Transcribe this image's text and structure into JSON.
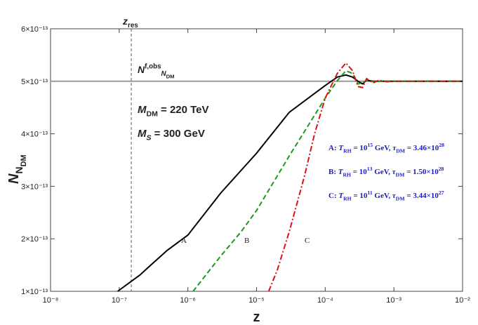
{
  "chart_data": {
    "type": "line",
    "xscale": "log",
    "xlim": [
      1e-08,
      0.01
    ],
    "ylim": [
      1e-13,
      6e-13
    ],
    "xticks": [
      {
        "value": 1e-08,
        "label": "10⁻⁸"
      },
      {
        "value": 1e-07,
        "label": "10⁻⁷"
      },
      {
        "value": 1e-06,
        "label": "10⁻⁶"
      },
      {
        "value": 1e-05,
        "label": "10⁻⁵"
      },
      {
        "value": 0.0001,
        "label": "10⁻⁴"
      },
      {
        "value": 0.001,
        "label": "10⁻³"
      },
      {
        "value": 0.01,
        "label": "10⁻²"
      }
    ],
    "yticks": [
      {
        "value": 1e-13,
        "label": "1×10⁻¹³"
      },
      {
        "value": 2e-13,
        "label": "2×10⁻¹³"
      },
      {
        "value": 3e-13,
        "label": "3×10⁻¹³"
      },
      {
        "value": 4e-13,
        "label": "4×10⁻¹³"
      },
      {
        "value": 5e-13,
        "label": "5×10⁻¹³"
      },
      {
        "value": 6e-13,
        "label": "6×10⁻¹³"
      }
    ],
    "x_label": [
      [
        "z",
        ""
      ]
    ],
    "y_label": [
      [
        "N",
        "i"
      ],
      [
        "N",
        "sub"
      ],
      [
        "DM",
        "subsub"
      ]
    ],
    "series": [
      {
        "name": "A",
        "color": "#000000",
        "dash": "solid",
        "x": [
          9.5e-08,
          2e-07,
          3e-07,
          5e-07,
          1e-06,
          3e-06,
          1e-05,
          3e-05,
          0.0001,
          0.00015,
          0.0002,
          0.00025,
          0.0003,
          0.00035,
          0.0004,
          0.0005,
          0.001,
          0.01
        ],
        "values": [
          1e-13,
          1.31e-13,
          1.52e-13,
          1.78e-13,
          2.07e-13,
          2.87e-13,
          3.63e-13,
          4.41e-13,
          4.92e-13,
          5.08e-13,
          5.12e-13,
          5.08e-13,
          5e-13,
          4.95e-13,
          5.02e-13,
          5e-13,
          5e-13,
          5e-13
        ]
      },
      {
        "name": "B",
        "color": "#1a9a1a",
        "dash": "dashed",
        "x": [
          1.19e-06,
          3e-06,
          6e-06,
          1e-05,
          3e-05,
          0.0001,
          0.00015,
          0.0002,
          0.00025,
          0.0003,
          0.00035,
          0.0004,
          0.0005,
          0.0006,
          0.001,
          0.01
        ],
        "values": [
          1e-13,
          1.67e-13,
          2.14e-13,
          2.54e-13,
          3.58e-13,
          4.68e-13,
          5.01e-13,
          5.2e-13,
          5.15e-13,
          4.95e-13,
          4.97e-13,
          5.02e-13,
          4.99e-13,
          5e-13,
          5e-13,
          5e-13
        ]
      },
      {
        "name": "C",
        "color": "#e01010",
        "dash": "dashdot",
        "x": [
          1.5e-05,
          2e-05,
          3e-05,
          5e-05,
          7e-05,
          0.0001,
          0.00015,
          0.0002,
          0.00025,
          0.0003,
          0.00035,
          0.0004,
          0.0005,
          0.0006,
          0.0008,
          0.001,
          0.01
        ],
        "values": [
          1e-13,
          1.4e-13,
          2.14e-13,
          3.2e-13,
          4e-13,
          4.68e-13,
          5.15e-13,
          5.35e-13,
          5.2e-13,
          4.9e-13,
          4.88e-13,
          5.05e-13,
          4.97e-13,
          5.02e-13,
          4.99e-13,
          5e-13,
          5e-13
        ]
      }
    ],
    "reference_line": {
      "y": 5e-13,
      "color": "#999999",
      "label": [
        [
          "N",
          "i"
        ],
        [
          "f,obs",
          "sup"
        ],
        [
          "N",
          "isub"
        ],
        [
          "DM",
          "subsub"
        ]
      ]
    },
    "marker_line": {
      "x": 1.5e-07,
      "label": [
        [
          "z",
          "i"
        ],
        [
          "res",
          "sub"
        ]
      ]
    },
    "annotations": [
      [
        [
          "M",
          "i"
        ],
        [
          "DM",
          "sub"
        ],
        [
          " = 220 TeV",
          ""
        ]
      ],
      [
        [
          "M",
          "i"
        ],
        [
          "S",
          "isub"
        ],
        [
          " = 300 GeV",
          ""
        ]
      ]
    ],
    "legend_color": "#1a1acc",
    "legend_notes": [
      [
        [
          "A:  ",
          ""
        ],
        [
          "T",
          "i"
        ],
        [
          "RH",
          "sub"
        ],
        [
          " = 10",
          ""
        ],
        [
          "15",
          "sup"
        ],
        [
          " GeV, ",
          ""
        ],
        [
          "τ",
          "i"
        ],
        [
          "DM",
          "sub"
        ],
        [
          " = 3.46×10",
          ""
        ],
        [
          "28",
          "sup"
        ]
      ],
      [
        [
          "B:  ",
          ""
        ],
        [
          "T",
          "i"
        ],
        [
          "RH",
          "sub"
        ],
        [
          " = 10",
          ""
        ],
        [
          "13",
          "sup"
        ],
        [
          " GeV, ",
          ""
        ],
        [
          "τ",
          "i"
        ],
        [
          "DM",
          "sub"
        ],
        [
          " = 1.50×10",
          ""
        ],
        [
          "28",
          "sup"
        ]
      ],
      [
        [
          "C:  ",
          ""
        ],
        [
          "T",
          "i"
        ],
        [
          "RH",
          "sub"
        ],
        [
          " = 10",
          ""
        ],
        [
          "11",
          "sup"
        ],
        [
          " GeV, ",
          ""
        ],
        [
          "τ",
          "i"
        ],
        [
          "DM",
          "sub"
        ],
        [
          " = 3.44×10",
          ""
        ],
        [
          "27",
          "sup"
        ]
      ]
    ]
  }
}
